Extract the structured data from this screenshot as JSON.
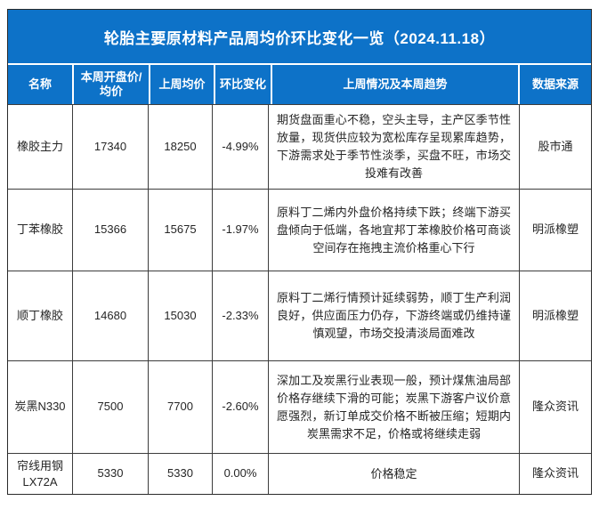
{
  "title": "轮胎主要原材料产品周均价环比变化一览（2024.11.18）",
  "colors": {
    "header_blue": "#0d72c8",
    "grid_line": "#3c3c3c",
    "header_text": "#ffffff",
    "body_text": "#262626"
  },
  "columns": [
    "名称",
    "本周开盘价/均价",
    "上周均价",
    "环比变化",
    "上周情况及本周趋势",
    "数据来源"
  ],
  "rows": [
    {
      "name": "橡胶主力",
      "open": "17340",
      "last": "18250",
      "change": "-4.99%",
      "trend": "期货盘面重心不稳，空头主导，主产区季节性放量，现货供应较为宽松库存呈现累库趋势，下游需求处于季节性淡季，买盘不旺，市场交投难有改善",
      "source": "股市通"
    },
    {
      "name": "丁苯橡胶",
      "open": "15366",
      "last": "15675",
      "change": "-1.97%",
      "trend": "原料丁二烯内外盘价格持续下跌；终端下游买盘倾向于低端，各地宜邦丁苯橡胶价格可商谈空间存在拖拽主流价格重心下行",
      "source": "明派橡塑"
    },
    {
      "name": "顺丁橡胶",
      "open": "14680",
      "last": "15030",
      "change": "-2.33%",
      "trend": "原料丁二烯行情预计延续弱势，顺丁生产利润良好，供应面压力仍存，下游终端或仍维持谨慎观望，市场交投清淡局面难改",
      "source": "明派橡塑"
    },
    {
      "name": "炭黑N330",
      "open": "7500",
      "last": "7700",
      "change": "-2.60%",
      "trend": "深加工及炭黑行业表现一般，预计煤焦油局部价格存继续下滑的可能；炭黑下游客户议价意愿强烈，新订单成交价格不断被压缩；短期内炭黑需求不足，价格或将继续走弱",
      "source": "隆众资讯"
    },
    {
      "name": "帘线用钢",
      "name2": "LX72A",
      "open": "5330",
      "last": "5330",
      "change": "0.00%",
      "trend": "价格稳定",
      "source": "隆众资讯"
    }
  ]
}
